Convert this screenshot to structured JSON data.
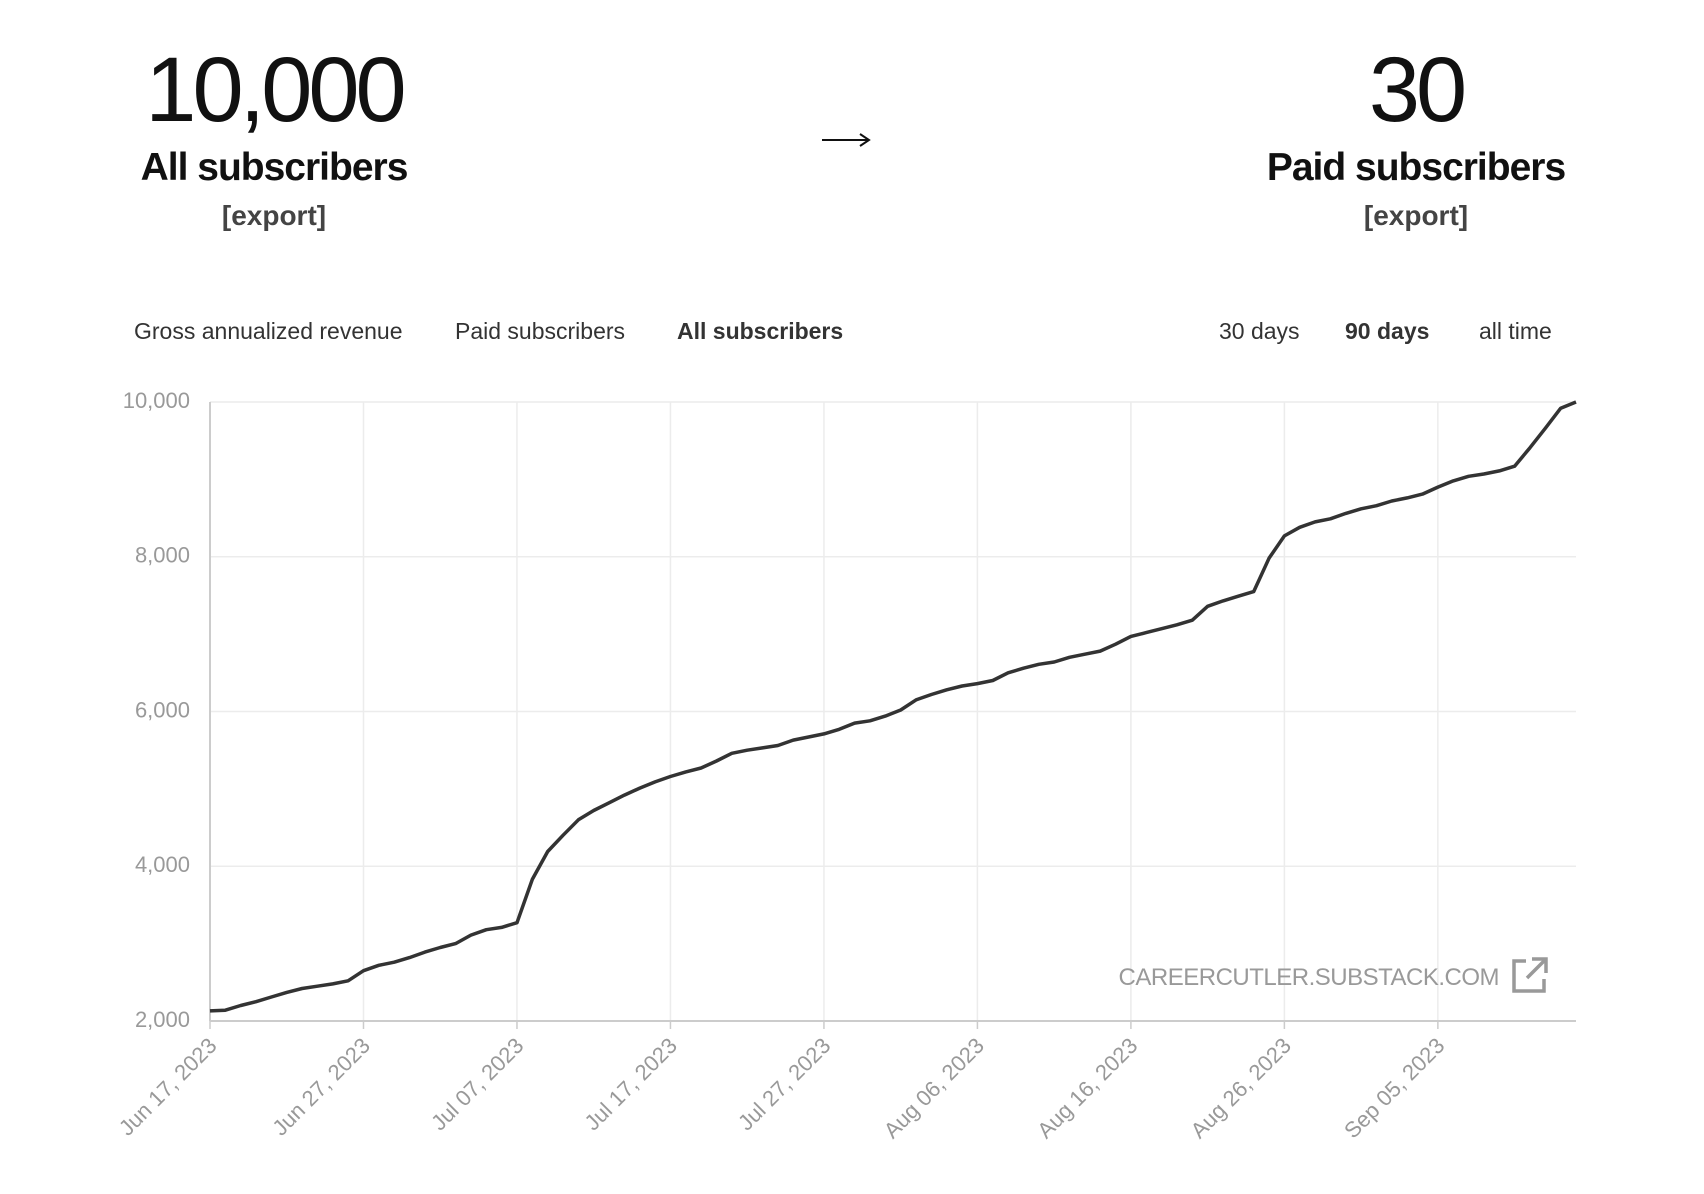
{
  "header": {
    "stats": [
      {
        "number": "10,000",
        "label": "All subscribers",
        "link": "[export]"
      },
      {
        "number": "30",
        "label": "Paid subscribers",
        "link": "[export]"
      }
    ]
  },
  "tabs": {
    "metrics": [
      {
        "label": "Gross annualized revenue",
        "active": false
      },
      {
        "label": "Paid subscribers",
        "active": false
      },
      {
        "label": "All subscribers",
        "active": true
      }
    ],
    "ranges": [
      {
        "label": "30 days",
        "active": false
      },
      {
        "label": "90 days",
        "active": true
      },
      {
        "label": "all time",
        "active": false
      }
    ]
  },
  "chart_data": {
    "type": "line",
    "color": "#333333",
    "grid": true,
    "watermark": "CAREERCUTLER.SUBSTACK.COM",
    "x": [
      "2023-06-17",
      "2023-06-18",
      "2023-06-19",
      "2023-06-20",
      "2023-06-21",
      "2023-06-22",
      "2023-06-23",
      "2023-06-24",
      "2023-06-25",
      "2023-06-26",
      "2023-06-27",
      "2023-06-28",
      "2023-06-29",
      "2023-06-30",
      "2023-07-01",
      "2023-07-02",
      "2023-07-03",
      "2023-07-04",
      "2023-07-05",
      "2023-07-06",
      "2023-07-07",
      "2023-07-08",
      "2023-07-09",
      "2023-07-10",
      "2023-07-11",
      "2023-07-12",
      "2023-07-13",
      "2023-07-14",
      "2023-07-15",
      "2023-07-16",
      "2023-07-17",
      "2023-07-18",
      "2023-07-19",
      "2023-07-20",
      "2023-07-21",
      "2023-07-22",
      "2023-07-23",
      "2023-07-24",
      "2023-07-25",
      "2023-07-26",
      "2023-07-27",
      "2023-07-28",
      "2023-07-29",
      "2023-07-30",
      "2023-07-31",
      "2023-08-01",
      "2023-08-02",
      "2023-08-03",
      "2023-08-04",
      "2023-08-05",
      "2023-08-06",
      "2023-08-07",
      "2023-08-08",
      "2023-08-09",
      "2023-08-10",
      "2023-08-11",
      "2023-08-12",
      "2023-08-13",
      "2023-08-14",
      "2023-08-15",
      "2023-08-16",
      "2023-08-17",
      "2023-08-18",
      "2023-08-19",
      "2023-08-20",
      "2023-08-21",
      "2023-08-22",
      "2023-08-23",
      "2023-08-24",
      "2023-08-25",
      "2023-08-26",
      "2023-08-27",
      "2023-08-28",
      "2023-08-29",
      "2023-08-30",
      "2023-08-31",
      "2023-09-01",
      "2023-09-02",
      "2023-09-03",
      "2023-09-04",
      "2023-09-05",
      "2023-09-06",
      "2023-09-07",
      "2023-09-08",
      "2023-09-09",
      "2023-09-10",
      "2023-09-11",
      "2023-09-12",
      "2023-09-13",
      "2023-09-14"
    ],
    "values": [
      2130,
      2140,
      2200,
      2250,
      2310,
      2370,
      2420,
      2450,
      2480,
      2520,
      2650,
      2720,
      2760,
      2820,
      2890,
      2950,
      3000,
      3110,
      3180,
      3210,
      3270,
      3830,
      4190,
      4400,
      4600,
      4720,
      4820,
      4920,
      5010,
      5090,
      5160,
      5220,
      5270,
      5360,
      5460,
      5500,
      5530,
      5560,
      5630,
      5670,
      5710,
      5770,
      5850,
      5880,
      5940,
      6020,
      6150,
      6220,
      6280,
      6330,
      6360,
      6400,
      6500,
      6560,
      6610,
      6640,
      6700,
      6740,
      6780,
      6870,
      6970,
      7020,
      7070,
      7120,
      7180,
      7360,
      7430,
      7490,
      7550,
      7980,
      8270,
      8380,
      8450,
      8490,
      8560,
      8620,
      8660,
      8720,
      8760,
      8810,
      8900,
      8980,
      9040,
      9070,
      9110,
      9170,
      9410,
      9660,
      9920,
      10000
    ],
    "xlim": [
      "2023-06-17",
      "2023-09-14"
    ],
    "xticks": [
      {
        "value": "2023-06-17",
        "label": "Jun 17, 2023"
      },
      {
        "value": "2023-06-27",
        "label": "Jun 27, 2023"
      },
      {
        "value": "2023-07-07",
        "label": "Jul 07, 2023"
      },
      {
        "value": "2023-07-17",
        "label": "Jul 17, 2023"
      },
      {
        "value": "2023-07-27",
        "label": "Jul 27, 2023"
      },
      {
        "value": "2023-08-06",
        "label": "Aug 06, 2023"
      },
      {
        "value": "2023-08-16",
        "label": "Aug 16, 2023"
      },
      {
        "value": "2023-08-26",
        "label": "Aug 26, 2023"
      },
      {
        "value": "2023-09-05",
        "label": "Sep 05, 2023"
      }
    ],
    "ylim": [
      2000,
      10000
    ],
    "yticks": [
      {
        "value": 2000,
        "label": "2,000"
      },
      {
        "value": 4000,
        "label": "4,000"
      },
      {
        "value": 6000,
        "label": "6,000"
      },
      {
        "value": 8000,
        "label": "8,000"
      },
      {
        "value": 10000,
        "label": "10,000"
      }
    ]
  }
}
